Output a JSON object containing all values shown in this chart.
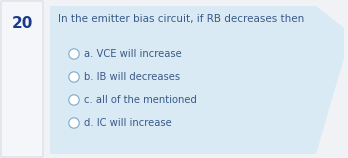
{
  "question_number": "20",
  "question_text": "In the emitter bias circuit, if RB decreases then",
  "options": [
    "a. VCE will increase",
    "b. IB will decreases",
    "c. all of the mentioned",
    "d. IC will increase"
  ],
  "bg_color": "#daeaf4",
  "question_color": "#3a5a8a",
  "option_color": "#3a5a8a",
  "number_color": "#1a3a8a",
  "circle_edge_color": "#8ab0cc",
  "fig_bg_color": "#f0f2f5",
  "num_box_color": "#f5f6fa",
  "num_box_edge": "#d0d4dc",
  "fig_width": 3.48,
  "fig_height": 1.58,
  "dpi": 100
}
